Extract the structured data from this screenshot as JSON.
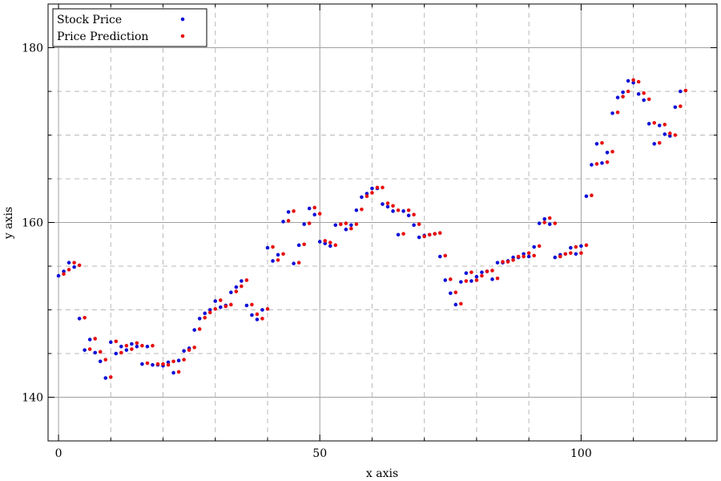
{
  "chart_data": {
    "type": "scatter",
    "xlabel": "x axis",
    "ylabel": "y axis",
    "xlim": [
      -2,
      126
    ],
    "ylim": [
      135,
      185
    ],
    "x_ticks": [
      0,
      50,
      100
    ],
    "y_ticks": [
      140,
      160,
      180
    ],
    "x_minor_step": 10,
    "y_minor_step": 5,
    "grid": true,
    "legend_position": "top-left",
    "series": [
      {
        "name": "Stock Price",
        "color": "#1010d8",
        "x": [
          0,
          1,
          2,
          3,
          4,
          5,
          6,
          7,
          8,
          9,
          10,
          11,
          12,
          13,
          14,
          15,
          16,
          17,
          18,
          19,
          20,
          21,
          22,
          23,
          24,
          25,
          26,
          27,
          28,
          29,
          30,
          31,
          32,
          33,
          34,
          35,
          36,
          37,
          38,
          39,
          40,
          41,
          42,
          43,
          44,
          45,
          46,
          47,
          48,
          49,
          50,
          51,
          52,
          53,
          54,
          55,
          56,
          57,
          58,
          59,
          60,
          61,
          62,
          63,
          64,
          65,
          66,
          67,
          68,
          69,
          70,
          71,
          72,
          73,
          74,
          75,
          76,
          77,
          78,
          79,
          80,
          81,
          82,
          83,
          84,
          85,
          86,
          87,
          88,
          89,
          90,
          91,
          92,
          93,
          94,
          95,
          96,
          97,
          98,
          99,
          100,
          101,
          102,
          103,
          104,
          105,
          106,
          107,
          108,
          109,
          110,
          111,
          112,
          113,
          114,
          115,
          116,
          117,
          118,
          119
        ],
        "values": [
          153.9,
          154.4,
          155.4,
          154.9,
          149.0,
          145.4,
          146.6,
          145.1,
          144.1,
          142.2,
          146.3,
          145.0,
          145.8,
          145.4,
          146.1,
          145.8,
          143.8,
          145.8,
          143.7,
          143.7,
          143.6,
          144.0,
          142.8,
          144.2,
          145.3,
          145.6,
          147.7,
          149.0,
          149.6,
          150.0,
          151.0,
          150.3,
          150.5,
          152.0,
          152.6,
          153.3,
          150.5,
          149.4,
          148.9,
          150.0,
          157.1,
          155.6,
          156.3,
          160.1,
          161.2,
          155.3,
          157.4,
          159.8,
          161.6,
          160.9,
          157.8,
          157.6,
          157.3,
          159.7,
          159.8,
          159.2,
          159.7,
          161.4,
          162.9,
          163.3,
          163.9,
          163.9,
          162.1,
          161.8,
          161.3,
          158.6,
          161.3,
          160.8,
          159.7,
          158.3,
          158.5,
          158.6,
          158.7,
          156.1,
          153.4,
          151.9,
          150.6,
          153.2,
          154.2,
          153.3,
          153.8,
          154.3,
          154.4,
          153.5,
          155.4,
          155.4,
          155.6,
          156.0,
          156.0,
          156.4,
          156.1,
          157.2,
          159.9,
          160.4,
          159.8,
          156.0,
          156.3,
          156.4,
          157.1,
          156.4,
          157.3,
          163.0,
          166.6,
          169.0,
          166.8,
          168.0,
          172.5,
          174.3,
          174.9,
          176.2,
          176.0,
          174.7,
          174.0,
          171.3,
          169.0,
          171.1,
          170.1,
          169.9,
          173.2,
          175.0
        ]
      },
      {
        "name": "Price Prediction",
        "color": "#e81010",
        "x": [
          1,
          2,
          3,
          4,
          5,
          6,
          7,
          8,
          9,
          10,
          11,
          12,
          13,
          14,
          15,
          16,
          17,
          18,
          19,
          20,
          21,
          22,
          23,
          24,
          25,
          26,
          27,
          28,
          29,
          30,
          31,
          32,
          33,
          34,
          35,
          36,
          37,
          38,
          39,
          40,
          41,
          42,
          43,
          44,
          45,
          46,
          47,
          48,
          49,
          50,
          51,
          52,
          53,
          54,
          55,
          56,
          57,
          58,
          59,
          60,
          61,
          62,
          63,
          64,
          65,
          66,
          67,
          68,
          69,
          70,
          71,
          72,
          73,
          74,
          75,
          76,
          77,
          78,
          79,
          80,
          81,
          82,
          83,
          84,
          85,
          86,
          87,
          88,
          89,
          90,
          91,
          92,
          93,
          94,
          95,
          96,
          97,
          98,
          99,
          100,
          101,
          102,
          103,
          104,
          105,
          106,
          107,
          108,
          109,
          110,
          111,
          112,
          113,
          114,
          115,
          116,
          117,
          118,
          119,
          120
        ],
        "values": [
          154.1,
          154.6,
          155.4,
          155.1,
          149.1,
          145.5,
          146.7,
          145.2,
          144.3,
          142.3,
          146.4,
          145.1,
          145.9,
          145.5,
          146.2,
          145.9,
          143.9,
          145.9,
          143.8,
          143.8,
          143.7,
          144.1,
          142.9,
          144.3,
          145.4,
          145.7,
          147.8,
          149.1,
          149.7,
          150.1,
          151.1,
          150.4,
          150.6,
          152.1,
          152.7,
          153.4,
          150.6,
          149.5,
          149.0,
          150.1,
          157.2,
          155.7,
          156.4,
          160.2,
          161.3,
          155.4,
          157.5,
          159.9,
          161.7,
          161.0,
          157.9,
          157.7,
          157.4,
          159.8,
          159.9,
          159.3,
          159.8,
          161.5,
          163.0,
          163.4,
          164.0,
          164.0,
          162.2,
          161.9,
          161.4,
          158.7,
          161.4,
          160.9,
          159.8,
          158.4,
          158.6,
          158.7,
          158.8,
          156.2,
          153.5,
          152.0,
          150.7,
          153.3,
          154.3,
          153.4,
          153.9,
          154.4,
          154.5,
          153.6,
          155.5,
          155.5,
          155.7,
          156.1,
          156.1,
          156.5,
          156.2,
          157.3,
          160.0,
          160.5,
          159.9,
          156.1,
          156.4,
          156.5,
          157.2,
          156.5,
          157.4,
          163.1,
          166.7,
          169.1,
          166.9,
          168.1,
          172.6,
          174.4,
          175.0,
          176.3,
          176.1,
          174.8,
          174.1,
          171.4,
          169.1,
          171.2,
          170.2,
          170.0,
          173.3,
          175.1
        ]
      }
    ]
  }
}
